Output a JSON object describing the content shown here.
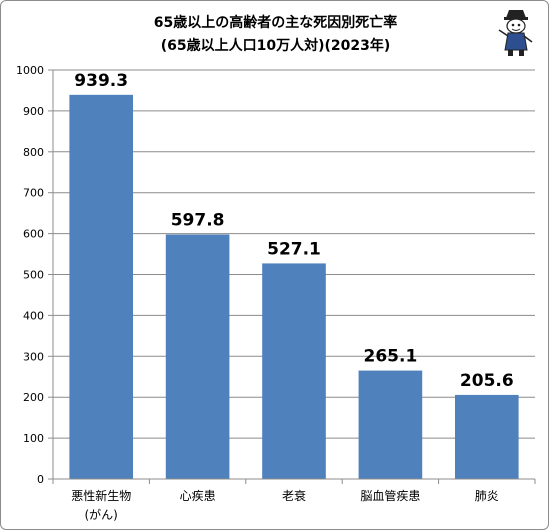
{
  "chart_data": {
    "type": "bar",
    "title": "65歳以上の高齢者の主な死因別死亡率",
    "subtitle": "(65歳以上人口10万人対)(2023年)",
    "categories": [
      "悪性新生物(がん)",
      "心疾患",
      "老衰",
      "脳血管疾患",
      "肺炎"
    ],
    "category_lines": [
      [
        "悪性新生物",
        "(がん)"
      ],
      [
        "心疾患"
      ],
      [
        "老衰"
      ],
      [
        "脳血管疾患"
      ],
      [
        "肺炎"
      ]
    ],
    "values": [
      939.3,
      597.8,
      527.1,
      265.1,
      205.6
    ],
    "value_labels": [
      "939.3",
      "597.8",
      "527.1",
      "265.1",
      "205.6"
    ],
    "ylim": [
      0,
      1000
    ],
    "yticks": [
      0,
      100,
      200,
      300,
      400,
      500,
      600,
      700,
      800,
      900,
      1000
    ],
    "grid": true,
    "xlabel": "",
    "ylabel": "",
    "bar_color": "#4f81bd"
  }
}
